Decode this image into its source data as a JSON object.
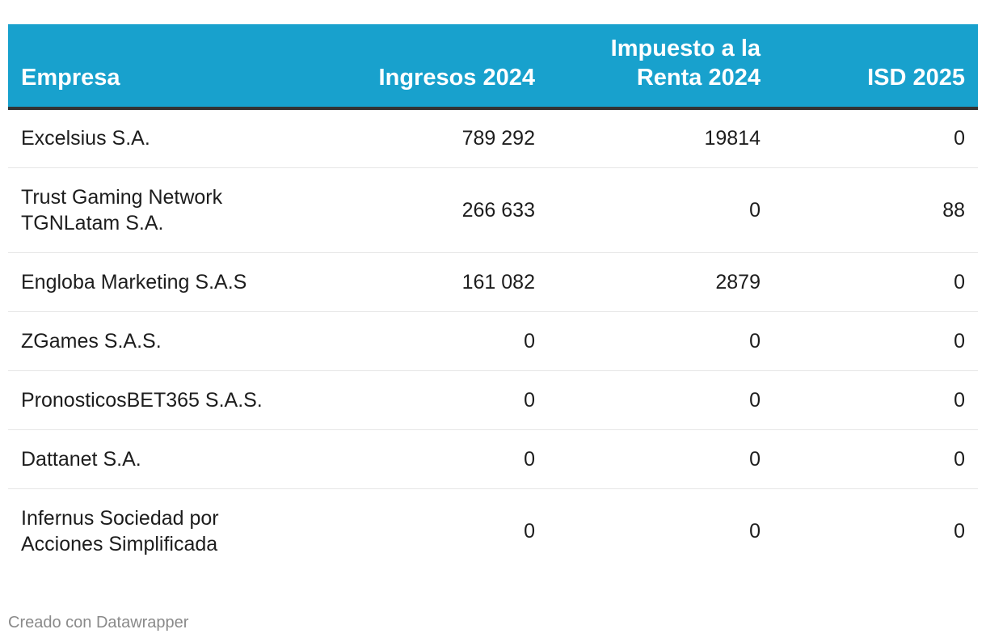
{
  "chart_data": {
    "type": "table",
    "columns": [
      "Empresa",
      "Ingresos 2024",
      "Impuesto a la Renta 2024",
      "ISD 2025"
    ],
    "rows": [
      {
        "empresa": "Excelsius S.A.",
        "ingresos": "789 292",
        "impuesto": "19814",
        "isd": "0"
      },
      {
        "empresa": "Trust Gaming Network TGNLatam S.A.",
        "ingresos": "266 633",
        "impuesto": "0",
        "isd": "88"
      },
      {
        "empresa": "Engloba Marketing S.A.S",
        "ingresos": "161 082",
        "impuesto": "2879",
        "isd": "0"
      },
      {
        "empresa": "ZGames S.A.S.",
        "ingresos": "0",
        "impuesto": "0",
        "isd": "0"
      },
      {
        "empresa": "PronosticosBET365 S.A.S.",
        "ingresos": "0",
        "impuesto": "0",
        "isd": "0"
      },
      {
        "empresa": "Dattanet S.A.",
        "ingresos": "0",
        "impuesto": "0",
        "isd": "0"
      },
      {
        "empresa": "Infernus Sociedad por Acciones Simplificada",
        "ingresos": "0",
        "impuesto": "0",
        "isd": "0"
      }
    ]
  },
  "footer": {
    "credit": "Creado con Datawrapper"
  },
  "colors": {
    "header_bg": "#18a1cd",
    "header_text": "#ffffff",
    "header_rule": "#333333",
    "row_divider": "#e6e6e6",
    "footer_text": "#8a8a8a"
  }
}
